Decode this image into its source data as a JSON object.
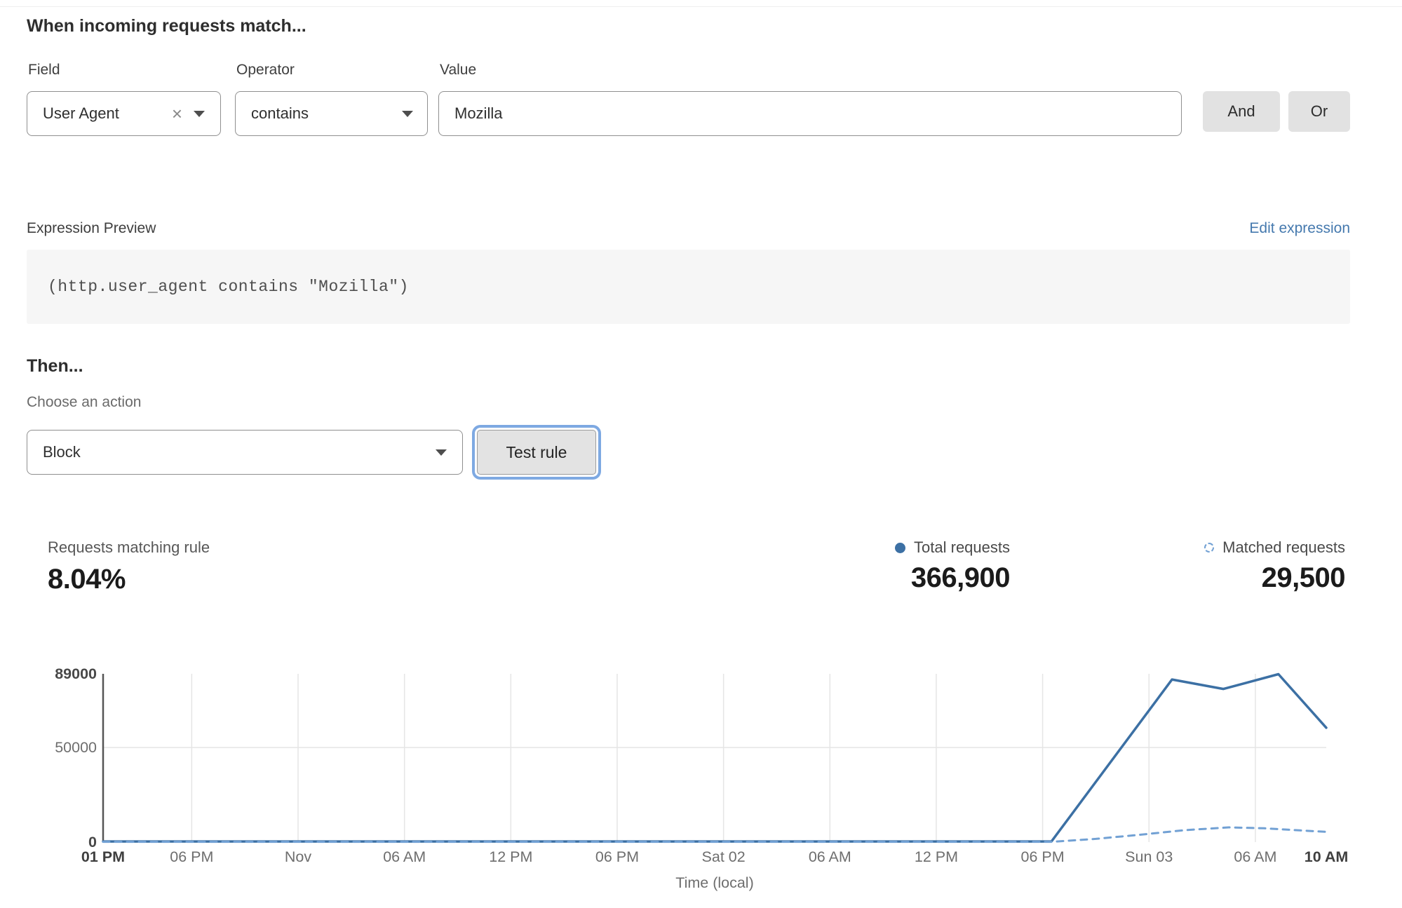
{
  "colors": {
    "link_blue": "#4579ae",
    "chart_solid": "#3c70a4",
    "chart_dashed": "#72a1d4",
    "focus_ring": "#7ea9e2"
  },
  "match_section": {
    "heading": "When incoming requests match...",
    "field": {
      "label": "Field",
      "value": "User Agent"
    },
    "operator": {
      "label": "Operator",
      "value": "contains"
    },
    "value_field": {
      "label": "Value",
      "value": "Mozilla"
    },
    "and_label": "And",
    "or_label": "Or"
  },
  "expression": {
    "label": "Expression Preview",
    "edit_link": "Edit expression",
    "code": "(http.user_agent contains \"Mozilla\")"
  },
  "then_section": {
    "heading": "Then...",
    "action_label": "Choose an action",
    "action_value": "Block",
    "test_button_label": "Test rule"
  },
  "stats": {
    "matching_rule": {
      "label": "Requests matching rule",
      "value": "8.04%"
    },
    "total": {
      "label": "Total requests",
      "value": "366,900"
    },
    "matched": {
      "label": "Matched requests",
      "value": "29,500"
    }
  },
  "chart_data": {
    "type": "line",
    "title": "",
    "xlabel": "Time (local)",
    "ylabel": "",
    "ylim": [
      0,
      89000
    ],
    "grid": "vertical lines at each x tick, horizontal line at 50000",
    "legend_position": "top-right above chart",
    "y_ticks": [
      {
        "value": 89000,
        "label": "89000",
        "bold": true,
        "grid": false
      },
      {
        "value": 50000,
        "label": "50000",
        "bold": false,
        "grid": true
      },
      {
        "value": 0,
        "label": "0",
        "bold": true,
        "grid": false
      }
    ],
    "x_ticks": [
      {
        "hour": 0,
        "label": "01 PM",
        "bold": true,
        "grid": false
      },
      {
        "hour": 5,
        "label": "06 PM",
        "bold": false,
        "grid": true
      },
      {
        "hour": 11,
        "label": "Nov",
        "bold": false,
        "grid": true
      },
      {
        "hour": 17,
        "label": "06 AM",
        "bold": false,
        "grid": true
      },
      {
        "hour": 23,
        "label": "12 PM",
        "bold": false,
        "grid": true
      },
      {
        "hour": 29,
        "label": "06 PM",
        "bold": false,
        "grid": true
      },
      {
        "hour": 35,
        "label": "Sat 02",
        "bold": false,
        "grid": true
      },
      {
        "hour": 41,
        "label": "06 AM",
        "bold": false,
        "grid": true
      },
      {
        "hour": 47,
        "label": "12 PM",
        "bold": false,
        "grid": true
      },
      {
        "hour": 53,
        "label": "06 PM",
        "bold": false,
        "grid": true
      },
      {
        "hour": 59,
        "label": "Sun 03",
        "bold": false,
        "grid": true
      },
      {
        "hour": 65,
        "label": "06 AM",
        "bold": false,
        "grid": true
      },
      {
        "hour": 69,
        "label": "10 AM",
        "bold": true,
        "grid": false
      }
    ],
    "series": [
      {
        "name": "Total requests",
        "style": "solid",
        "color": "#3c70a4",
        "points": [
          [
            0,
            350
          ],
          [
            53.5,
            350
          ],
          [
            60.3,
            86000
          ],
          [
            63.2,
            81000
          ],
          [
            66.3,
            88800
          ],
          [
            69,
            60500
          ]
        ]
      },
      {
        "name": "Matched requests",
        "style": "dashed",
        "color": "#72a1d4",
        "points": [
          [
            0,
            150
          ],
          [
            53.5,
            150
          ],
          [
            56,
            1700
          ],
          [
            58.5,
            3900
          ],
          [
            61,
            6300
          ],
          [
            63.5,
            7800
          ],
          [
            65.5,
            7300
          ],
          [
            67.5,
            6200
          ],
          [
            69,
            5400
          ]
        ]
      }
    ]
  }
}
